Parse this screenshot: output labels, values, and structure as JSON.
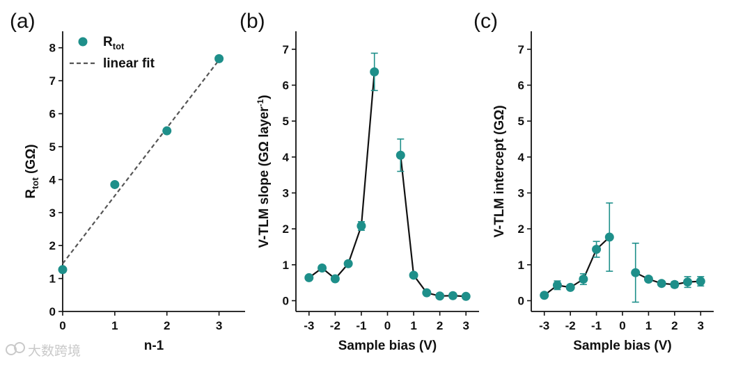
{
  "watermark": "大数跨境",
  "colors": {
    "marker": "#1e8f8a",
    "line": "#111111",
    "fit": "#555555"
  },
  "chart_data": [
    {
      "panel": "(a)",
      "type": "scatter",
      "xlabel": "n-1",
      "ylabel_main": "R",
      "ylabel_sub": "tot",
      "ylabel_tail": " (GΩ)",
      "xlim": [
        0,
        3.5
      ],
      "ylim": [
        0,
        8.5
      ],
      "xticks": [
        0,
        1,
        2,
        3
      ],
      "yticks": [
        0,
        1,
        2,
        3,
        4,
        5,
        6,
        7,
        8
      ],
      "series": [
        {
          "name": "R_tot",
          "x": [
            0,
            1,
            2,
            3
          ],
          "y": [
            1.27,
            3.85,
            5.48,
            7.67
          ]
        }
      ],
      "fit": {
        "name": "linear fit",
        "x": [
          0,
          3
        ],
        "y": [
          1.45,
          7.63
        ]
      },
      "legend": {
        "marker_main": "R",
        "marker_sub": "tot",
        "fit_label": "linear fit",
        "location": "top-left"
      }
    },
    {
      "panel": "(b)",
      "type": "line",
      "xlabel": "Sample bias (V)",
      "ylabel": "V-TLM slope (GΩ layer",
      "ylabel_sup": "-1",
      "ylabel_tail": ")",
      "xlim": [
        -3.5,
        3.5
      ],
      "ylim": [
        -0.3,
        7.5
      ],
      "xticks": [
        -3,
        -2,
        -1,
        0,
        1,
        2,
        3
      ],
      "yticks": [
        0,
        1,
        2,
        3,
        4,
        5,
        6,
        7
      ],
      "segments": [
        {
          "x": [
            -3,
            -2.5,
            -2,
            -1.5,
            -1,
            -0.5
          ],
          "y": [
            0.64,
            0.91,
            0.61,
            1.03,
            2.08,
            6.37
          ],
          "err": [
            0,
            0,
            0,
            0,
            0.12,
            0.52
          ]
        },
        {
          "x": [
            0.5,
            1,
            1.5,
            2,
            2.5,
            3
          ],
          "y": [
            4.05,
            0.71,
            0.22,
            0.13,
            0.14,
            0.12
          ],
          "err": [
            0.45,
            0,
            0,
            0,
            0,
            0
          ]
        }
      ]
    },
    {
      "panel": "(c)",
      "type": "line",
      "xlabel": "Sample bias (V)",
      "ylabel": "V-TLM intercept (GΩ)",
      "xlim": [
        -3.5,
        3.5
      ],
      "ylim": [
        -0.3,
        7.5
      ],
      "xticks": [
        -3,
        -2,
        -1,
        0,
        1,
        2,
        3
      ],
      "yticks": [
        0,
        1,
        2,
        3,
        4,
        5,
        6,
        7
      ],
      "segments": [
        {
          "x": [
            -3,
            -2.5,
            -2,
            -1.5,
            -1,
            -0.5
          ],
          "y": [
            0.15,
            0.43,
            0.37,
            0.6,
            1.43,
            1.77
          ],
          "err": [
            0,
            0.12,
            0,
            0.15,
            0.22,
            0.95
          ]
        },
        {
          "x": [
            0.5,
            1,
            1.5,
            2,
            2.5,
            3
          ],
          "y": [
            0.78,
            0.6,
            0.48,
            0.45,
            0.52,
            0.54
          ],
          "err": [
            0.82,
            0,
            0,
            0.08,
            0.15,
            0.13
          ]
        }
      ]
    }
  ]
}
